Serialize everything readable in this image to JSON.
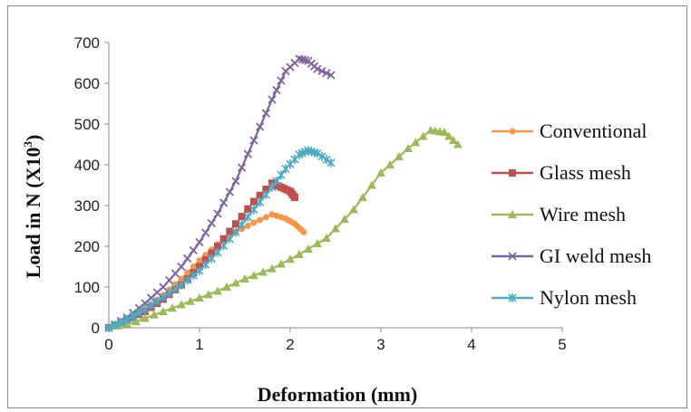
{
  "chart_data": {
    "type": "scatter",
    "title": "",
    "xlabel": "Deformation (mm)",
    "ylabel_main": "Load in N (X10",
    "ylabel_sup": "3",
    "ylabel_end": ")",
    "xlim": [
      0,
      5
    ],
    "ylim": [
      0,
      700
    ],
    "x_ticks": [
      "0",
      "1",
      "2",
      "3",
      "4",
      "5"
    ],
    "y_ticks": [
      "0",
      "100",
      "200",
      "300",
      "400",
      "500",
      "600",
      "700"
    ],
    "grid": false,
    "legend_position": "right",
    "series": [
      {
        "name": "Conventional",
        "color": "#f79646",
        "marker": "circle",
        "points": [
          [
            0,
            0
          ],
          [
            0.2,
            20
          ],
          [
            0.4,
            45
          ],
          [
            0.6,
            80
          ],
          [
            0.8,
            120
          ],
          [
            1.0,
            165
          ],
          [
            1.2,
            205
          ],
          [
            1.4,
            235
          ],
          [
            1.6,
            258
          ],
          [
            1.8,
            278
          ],
          [
            1.95,
            268
          ],
          [
            2.05,
            255
          ],
          [
            2.15,
            235
          ]
        ]
      },
      {
        "name": "Glass mesh",
        "color": "#c0504d",
        "marker": "square",
        "points": [
          [
            0,
            0
          ],
          [
            0.2,
            18
          ],
          [
            0.4,
            40
          ],
          [
            0.6,
            70
          ],
          [
            0.8,
            105
          ],
          [
            1.0,
            150
          ],
          [
            1.2,
            200
          ],
          [
            1.4,
            255
          ],
          [
            1.6,
            310
          ],
          [
            1.8,
            355
          ],
          [
            1.9,
            345
          ],
          [
            2.0,
            335
          ],
          [
            2.05,
            320
          ]
        ]
      },
      {
        "name": "Wire mesh",
        "color": "#9bbb59",
        "marker": "triangle",
        "points": [
          [
            0,
            0
          ],
          [
            0.3,
            15
          ],
          [
            0.6,
            40
          ],
          [
            0.9,
            65
          ],
          [
            1.2,
            90
          ],
          [
            1.5,
            120
          ],
          [
            1.8,
            145
          ],
          [
            2.1,
            180
          ],
          [
            2.4,
            220
          ],
          [
            2.7,
            290
          ],
          [
            3.0,
            380
          ],
          [
            3.3,
            440
          ],
          [
            3.55,
            485
          ],
          [
            3.7,
            480
          ],
          [
            3.85,
            450
          ]
        ]
      },
      {
        "name": "GI weld mesh",
        "color": "#8064a2",
        "marker": "x",
        "points": [
          [
            0,
            0
          ],
          [
            0.2,
            25
          ],
          [
            0.4,
            60
          ],
          [
            0.6,
            100
          ],
          [
            0.8,
            150
          ],
          [
            1.0,
            210
          ],
          [
            1.2,
            280
          ],
          [
            1.4,
            360
          ],
          [
            1.6,
            460
          ],
          [
            1.8,
            560
          ],
          [
            1.95,
            630
          ],
          [
            2.1,
            660
          ],
          [
            2.2,
            655
          ],
          [
            2.3,
            635
          ],
          [
            2.45,
            620
          ]
        ]
      },
      {
        "name": "Nylon mesh",
        "color": "#4bacc6",
        "marker": "star",
        "points": [
          [
            0,
            0
          ],
          [
            0.2,
            20
          ],
          [
            0.4,
            45
          ],
          [
            0.6,
            75
          ],
          [
            0.8,
            105
          ],
          [
            1.0,
            140
          ],
          [
            1.2,
            185
          ],
          [
            1.4,
            235
          ],
          [
            1.6,
            290
          ],
          [
            1.8,
            345
          ],
          [
            1.95,
            390
          ],
          [
            2.1,
            425
          ],
          [
            2.2,
            435
          ],
          [
            2.3,
            428
          ],
          [
            2.45,
            405
          ]
        ]
      }
    ]
  }
}
